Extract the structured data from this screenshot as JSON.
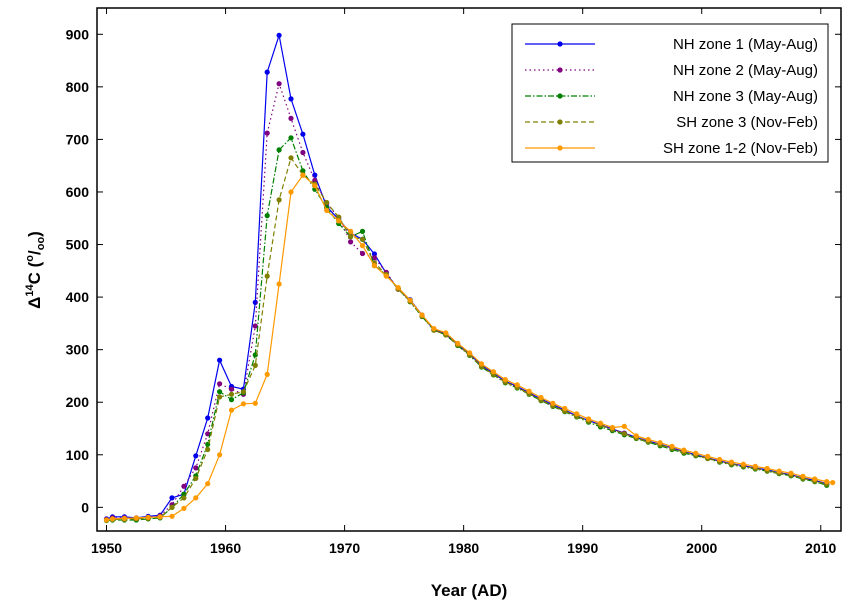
{
  "chart_data": {
    "type": "line",
    "xlabel": "Year (AD)",
    "ylabel_main": "Δ",
    "ylabel_sup1": "14",
    "ylabel_mid": "C (",
    "ylabel_sup2": "o",
    "ylabel_slash": "/",
    "ylabel_sub": "oo",
    "ylabel_end": ")",
    "xlim": [
      1949.2,
      2011.7
    ],
    "ylim": [
      -45,
      950
    ],
    "x_ticks": [
      1950,
      1960,
      1970,
      1980,
      1990,
      2000,
      2010
    ],
    "y_ticks": [
      0,
      100,
      200,
      300,
      400,
      500,
      600,
      700,
      800,
      900
    ],
    "grid": false,
    "legend_position": "top-right",
    "series": [
      {
        "name": "NH zone 1 (May-Aug)",
        "color": "#0000ee",
        "dash": "solid",
        "x": [
          1950.0,
          1950.5,
          1951.5,
          1952.5,
          1953.5,
          1954.5,
          1955.5,
          1956.5,
          1957.5,
          1958.5,
          1959.5,
          1960.5,
          1961.5,
          1962.5,
          1963.5,
          1964.5,
          1965.5,
          1966.5,
          1967.5,
          1968.5,
          1969.5,
          1970.5,
          1971.5,
          1972.5,
          1973.5,
          1974.5,
          1975.5,
          1976.5,
          1977.5,
          1978.5,
          1979.5,
          1980.5,
          1981.5,
          1982.5,
          1983.5,
          1984.5,
          1985.5,
          1986.5,
          1987.5,
          1988.5,
          1989.5,
          1990.5,
          1991.5,
          1992.5,
          1993.5,
          1994.5,
          1995.5,
          1996.5,
          1997.5,
          1998.5,
          1999.5,
          2000.5,
          2001.5,
          2002.5,
          2003.5,
          2004.5,
          2005.5,
          2006.5,
          2007.5,
          2008.5,
          2009.5,
          2010.5
        ],
        "y": [
          -22,
          -18,
          -18,
          -20,
          -17,
          -15,
          18,
          25,
          98,
          170,
          280,
          230,
          225,
          390,
          828,
          898,
          777,
          710,
          632,
          572,
          548,
          522,
          510,
          482,
          445,
          415,
          395,
          366,
          338,
          330,
          310,
          292,
          270,
          255,
          240,
          230,
          218,
          206,
          195,
          185,
          174,
          165,
          157,
          149,
          141,
          133,
          126,
          120,
          113,
          106,
          100,
          94,
          88,
          83,
          79,
          75,
          71,
          66,
          62,
          56,
          51,
          45
        ]
      },
      {
        "name": "NH zone 2 (May-Aug)",
        "color": "#800080",
        "dash": "dotted",
        "x": [
          1950.0,
          1950.5,
          1951.5,
          1952.5,
          1953.5,
          1954.5,
          1955.5,
          1956.5,
          1957.5,
          1958.5,
          1959.5,
          1960.5,
          1961.5,
          1962.5,
          1963.5,
          1964.5,
          1965.5,
          1966.5,
          1967.5,
          1968.5,
          1969.5,
          1970.5,
          1971.5,
          1972.5,
          1973.5,
          1974.5,
          1975.5,
          1976.5,
          1977.5,
          1978.5,
          1979.5,
          1980.5,
          1981.5,
          1982.5,
          1983.5,
          1984.5,
          1985.5,
          1986.5,
          1987.5,
          1988.5,
          1989.5,
          1990.5,
          1991.5,
          1992.5,
          1993.5,
          1994.5,
          1995.5,
          1996.5,
          1997.5,
          1998.5,
          1999.5,
          2000.5,
          2001.5,
          2002.5,
          2003.5,
          2004.5,
          2005.5,
          2006.5,
          2007.5,
          2008.5,
          2009.5,
          2010.5
        ],
        "y": [
          -23,
          -20,
          -20,
          -21,
          -19,
          -16,
          5,
          40,
          75,
          140,
          235,
          225,
          215,
          345,
          712,
          806,
          740,
          675,
          622,
          578,
          552,
          505,
          483,
          475,
          447,
          415,
          392,
          364,
          338,
          329,
          309,
          290,
          269,
          254,
          239,
          229,
          217,
          205,
          194,
          184,
          174,
          165,
          157,
          149,
          141,
          133,
          126,
          120,
          113,
          106,
          100,
          94,
          88,
          83,
          79,
          75,
          71,
          66,
          62,
          56,
          51,
          45
        ]
      },
      {
        "name": "NH zone 3 (May-Aug)",
        "color": "#008000",
        "dash": "dashdot",
        "x": [
          1950.0,
          1950.5,
          1951.5,
          1952.5,
          1953.5,
          1954.5,
          1955.5,
          1956.5,
          1957.5,
          1958.5,
          1959.5,
          1960.5,
          1961.5,
          1962.5,
          1963.5,
          1964.5,
          1965.5,
          1966.5,
          1967.5,
          1968.5,
          1969.5,
          1970.5,
          1971.5,
          1972.5,
          1973.5,
          1974.5,
          1975.5,
          1976.5,
          1977.5,
          1978.5,
          1979.5,
          1980.5,
          1981.5,
          1982.5,
          1983.5,
          1984.5,
          1985.5,
          1986.5,
          1987.5,
          1988.5,
          1989.5,
          1990.5,
          1991.5,
          1992.5,
          1993.5,
          1994.5,
          1995.5,
          1996.5,
          1997.5,
          1998.5,
          1999.5,
          2000.5,
          2001.5,
          2002.5,
          2003.5,
          2004.5,
          2005.5,
          2006.5,
          2007.5,
          2008.5,
          2009.5,
          2010.5
        ],
        "y": [
          -25,
          -24,
          -24,
          -24,
          -22,
          -20,
          0,
          25,
          60,
          120,
          220,
          205,
          218,
          290,
          555,
          680,
          703,
          640,
          605,
          570,
          540,
          515,
          525,
          460,
          442,
          416,
          391,
          363,
          337,
          328,
          308,
          289,
          267,
          252,
          237,
          227,
          215,
          203,
          192,
          182,
          172,
          162,
          153,
          146,
          138,
          131,
          124,
          117,
          110,
          103,
          98,
          93,
          86,
          81,
          77,
          73,
          69,
          64,
          60,
          54,
          49,
          42
        ]
      },
      {
        "name": "SH zone 3 (Nov-Feb)",
        "color": "#808000",
        "dash": "dashed",
        "x": [
          1950.0,
          1950.5,
          1951.5,
          1952.5,
          1953.5,
          1954.5,
          1955.5,
          1956.5,
          1957.5,
          1958.5,
          1959.5,
          1960.5,
          1961.5,
          1962.5,
          1963.5,
          1964.5,
          1965.5,
          1966.5,
          1967.5,
          1968.5,
          1969.5,
          1970.5,
          1971.5,
          1972.5,
          1973.5,
          1974.5,
          1975.5,
          1976.5,
          1977.5,
          1978.5,
          1979.5,
          1980.5,
          1981.5,
          1982.5,
          1983.5,
          1984.5,
          1985.5,
          1986.5,
          1987.5,
          1988.5,
          1989.5,
          1990.5,
          1991.5,
          1992.5,
          1993.5,
          1994.5,
          1995.5,
          1996.5,
          1997.5,
          1998.5,
          1999.5,
          2000.5,
          2001.5,
          2002.5,
          2003.5,
          2004.5,
          2005.5,
          2006.5,
          2007.5,
          2008.5,
          2009.5,
          2010.5
        ],
        "y": [
          -24,
          -23,
          -23,
          -22,
          -21,
          -19,
          0,
          18,
          55,
          110,
          210,
          215,
          220,
          270,
          440,
          585,
          665,
          632,
          615,
          580,
          552,
          515,
          510,
          465,
          443,
          415,
          392,
          364,
          337,
          328,
          309,
          290,
          268,
          253,
          238,
          228,
          216,
          204,
          193,
          183,
          173,
          164,
          156,
          148,
          140,
          132,
          125,
          119,
          112,
          105,
          99,
          93,
          87,
          82,
          78,
          74,
          70,
          65,
          61,
          55,
          50,
          44
        ]
      },
      {
        "name": "SH zone 1-2 (Nov-Feb)",
        "color": "#ff9900",
        "dash": "solid",
        "x": [
          1950.0,
          1950.5,
          1951.5,
          1952.5,
          1953.5,
          1954.5,
          1955.5,
          1956.5,
          1957.5,
          1958.5,
          1959.5,
          1960.5,
          1961.5,
          1962.5,
          1963.5,
          1964.5,
          1965.5,
          1966.5,
          1967.5,
          1968.5,
          1969.5,
          1970.5,
          1971.5,
          1972.5,
          1973.5,
          1974.5,
          1975.5,
          1976.5,
          1977.5,
          1978.5,
          1979.5,
          1980.5,
          1981.5,
          1982.5,
          1983.5,
          1984.5,
          1985.5,
          1986.5,
          1987.5,
          1988.5,
          1989.5,
          1990.5,
          1991.5,
          1992.5,
          1993.5,
          1994.5,
          1995.5,
          1996.5,
          1997.5,
          1998.5,
          1999.5,
          2000.5,
          2001.5,
          2002.5,
          2003.5,
          2004.5,
          2005.5,
          2006.5,
          2007.5,
          2008.5,
          2009.5,
          2010.5,
          2011.0
        ],
        "y": [
          -24,
          -22,
          -21,
          -20,
          -19,
          -18,
          -17,
          -2,
          18,
          45,
          100,
          185,
          197,
          198,
          253,
          425,
          600,
          632,
          612,
          565,
          545,
          525,
          498,
          460,
          440,
          418,
          394,
          366,
          340,
          332,
          312,
          294,
          273,
          258,
          243,
          233,
          221,
          209,
          198,
          188,
          178,
          168,
          160,
          152,
          154,
          136,
          129,
          123,
          116,
          109,
          103,
          97,
          91,
          86,
          82,
          78,
          74,
          69,
          65,
          59,
          54,
          49,
          47
        ]
      }
    ]
  }
}
